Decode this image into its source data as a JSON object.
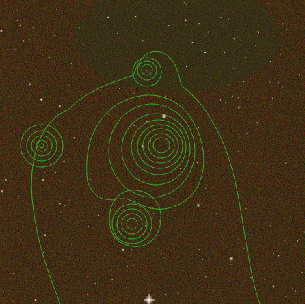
{
  "image": {
    "kind": "astronomical-survey-cutout",
    "background_color": "#0b0606",
    "contour_color": "#2fae2f",
    "star_color": "#ffffff"
  },
  "contours": {
    "description_level_count": 5
  }
}
